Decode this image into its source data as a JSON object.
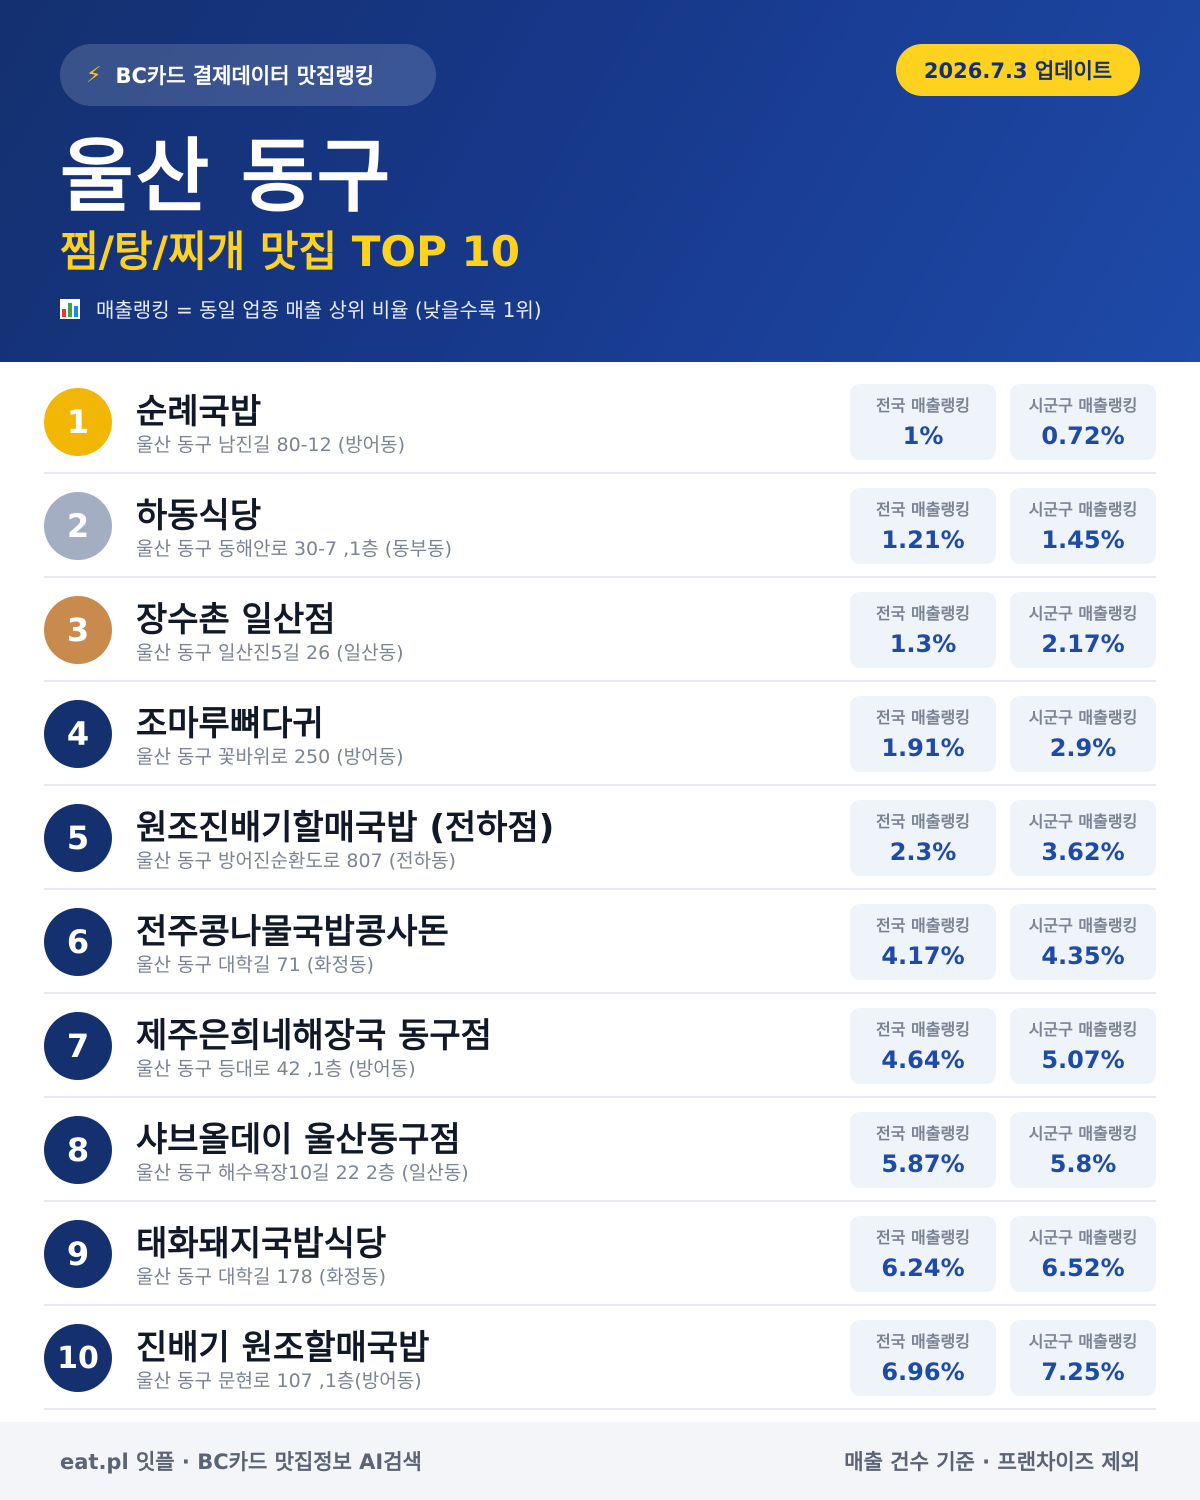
{
  "header": {
    "source_label": "BC카드 결제데이터 맛집랭킹",
    "source_icon": "lightning-icon",
    "update_label": "2026.7.3 업데이트",
    "region": "울산 동구",
    "category": "찜/탕/찌개 맛집 TOP 10",
    "note": "매출랭킹 = 동일 업종 매출 상위 비율 (낮을수록 1위)",
    "note_icon": "bar-chart-icon"
  },
  "colors": {
    "primary": "#14306f",
    "accent_yellow": "#ffd21f",
    "gold": "#f2b705",
    "silver": "#a3aec2",
    "bronze": "#c98a4e",
    "value_blue": "#1e4aa8"
  },
  "labels": {
    "national": "전국 매출랭킹",
    "local": "시군구 매출랭킹"
  },
  "restaurants": [
    {
      "rank": "1",
      "name": "순례국밥",
      "address": "울산 동구 남진길 80-12 (방어동)",
      "national": "1%",
      "local": "0.72%"
    },
    {
      "rank": "2",
      "name": "하동식당",
      "address": "울산 동구 동해안로 30-7 ,1층 (동부동)",
      "national": "1.21%",
      "local": "1.45%"
    },
    {
      "rank": "3",
      "name": "장수촌 일산점",
      "address": "울산 동구 일산진5길 26 (일산동)",
      "national": "1.3%",
      "local": "2.17%"
    },
    {
      "rank": "4",
      "name": "조마루뼈다귀",
      "address": "울산 동구 꽃바위로 250 (방어동)",
      "national": "1.91%",
      "local": "2.9%"
    },
    {
      "rank": "5",
      "name": "원조진배기할매국밥 (전하점)",
      "address": "울산 동구 방어진순환도로 807 (전하동)",
      "national": "2.3%",
      "local": "3.62%"
    },
    {
      "rank": "6",
      "name": "전주콩나물국밥콩사돈",
      "address": "울산 동구 대학길 71 (화정동)",
      "national": "4.17%",
      "local": "4.35%"
    },
    {
      "rank": "7",
      "name": "제주은희네해장국 동구점",
      "address": "울산 동구 등대로 42 ,1층 (방어동)",
      "national": "4.64%",
      "local": "5.07%"
    },
    {
      "rank": "8",
      "name": "샤브올데이 울산동구점",
      "address": "울산 동구 해수욕장10길 22 2층 (일산동)",
      "national": "5.87%",
      "local": "5.8%"
    },
    {
      "rank": "9",
      "name": "태화돼지국밥식당",
      "address": "울산 동구 대학길 178 (화정동)",
      "national": "6.24%",
      "local": "6.52%"
    },
    {
      "rank": "10",
      "name": "진배기 원조할매국밥",
      "address": "울산 동구 문현로 107 ,1층(방어동)",
      "national": "6.96%",
      "local": "7.25%"
    }
  ],
  "footer": {
    "left": "eat.pl 잇플 · BC카드 맛집정보 AI검색",
    "right": "매출 건수 기준 · 프랜차이즈 제외"
  }
}
